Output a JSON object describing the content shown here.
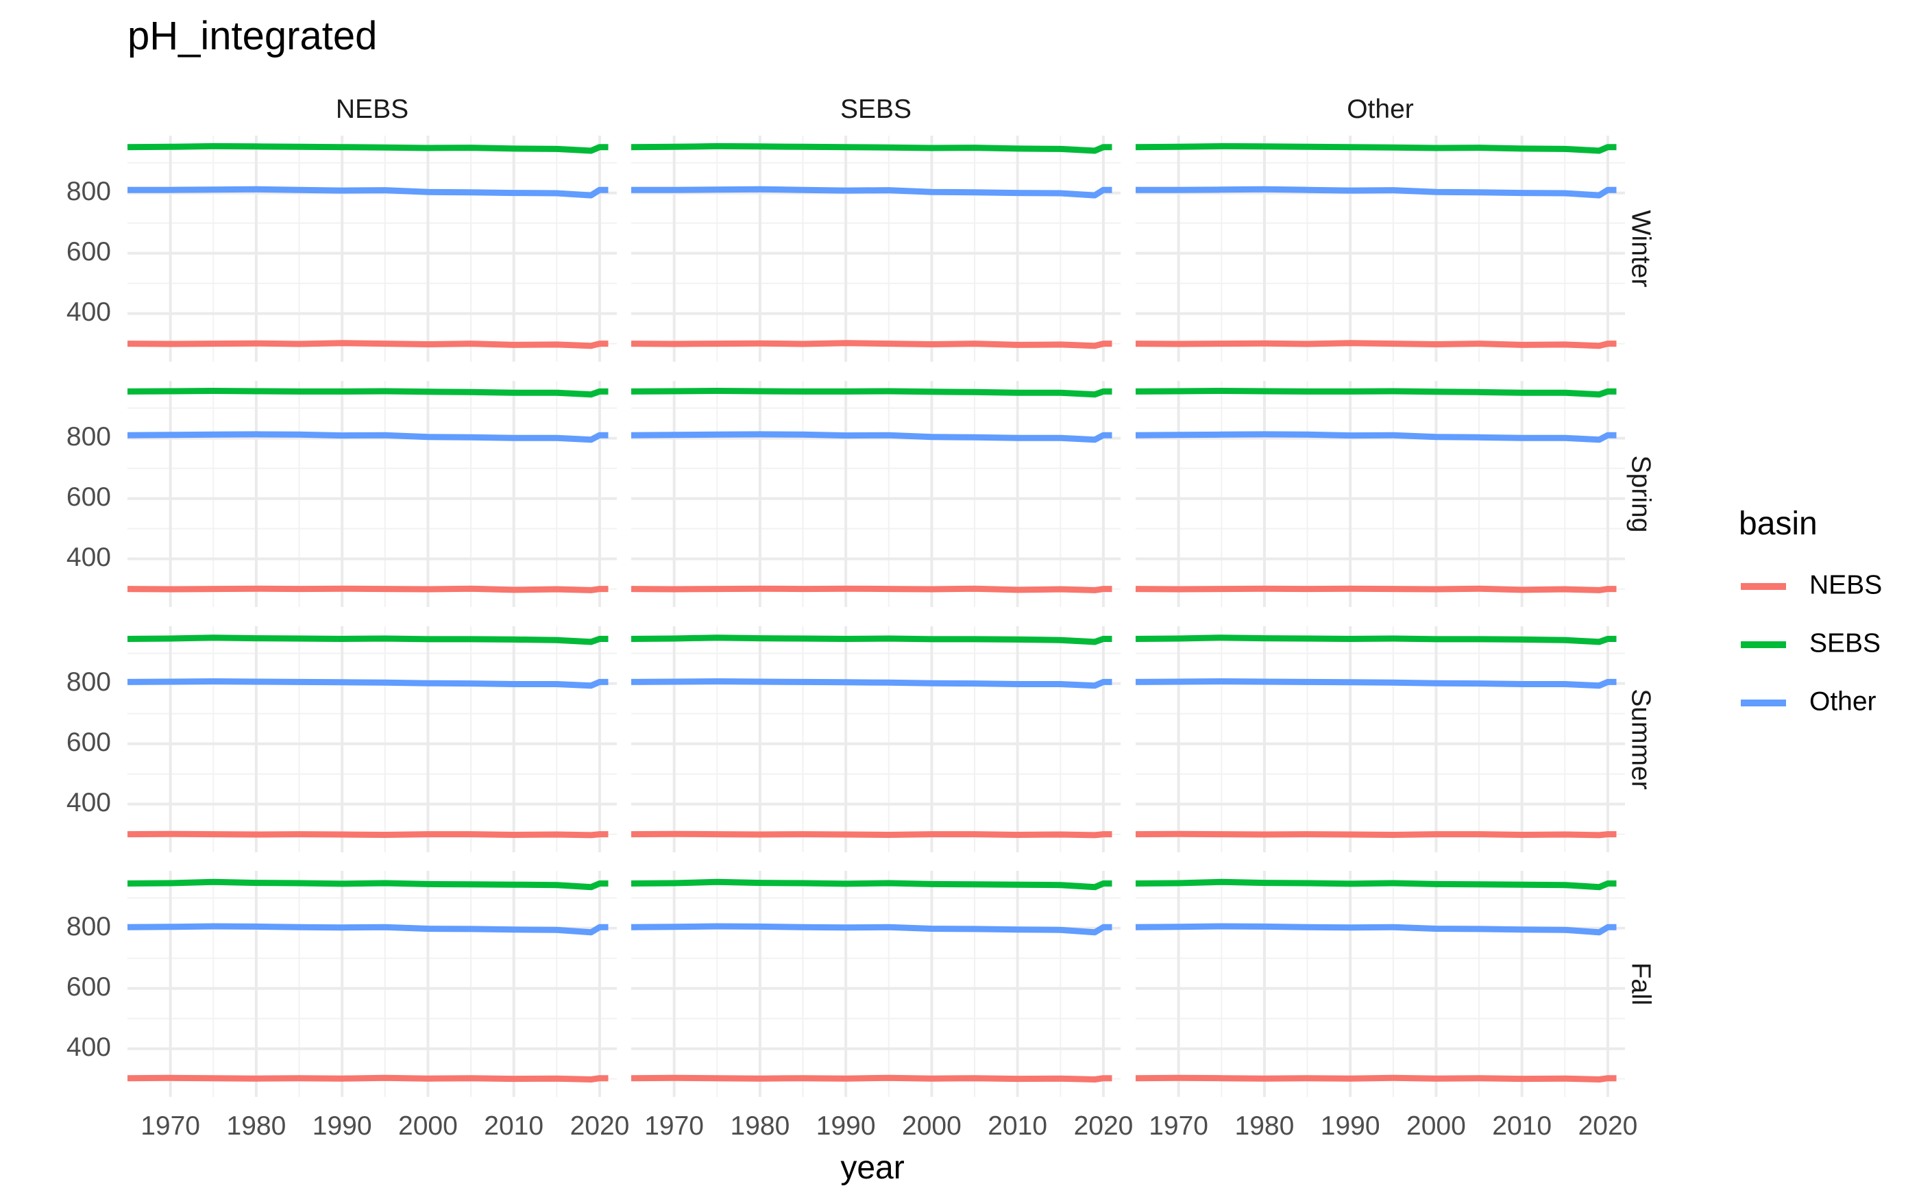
{
  "chart_data": {
    "type": "line",
    "title": "pH_integrated",
    "xlabel": "year",
    "ylabel": "",
    "facet_cols": [
      "NEBS",
      "SEBS",
      "Other"
    ],
    "facet_rows": [
      "Winter",
      "Spring",
      "Summer",
      "Fall"
    ],
    "xlim": [
      1965,
      2022
    ],
    "ylim": [
      240,
      990
    ],
    "x_ticks": [
      1970,
      1980,
      1990,
      2000,
      2010,
      2020
    ],
    "x_tick_labels": [
      "1970",
      "1980",
      "1990",
      "2000",
      "2010",
      "2020"
    ],
    "y_ticks": [
      400,
      600,
      800
    ],
    "y_tick_labels": [
      "400",
      "600",
      "800"
    ],
    "grid": true,
    "x": [
      1965,
      1970,
      1975,
      1980,
      1985,
      1990,
      1995,
      2000,
      2005,
      2010,
      2015,
      2019,
      2020,
      2021
    ],
    "series": [
      {
        "name": "NEBS",
        "color": "#F8766D",
        "panels": {
          "Winter": [
            300,
            299,
            300,
            301,
            299,
            302,
            300,
            298,
            300,
            296,
            297,
            293,
            300,
            300
          ],
          "Spring": [
            300,
            299,
            300,
            301,
            300,
            301,
            300,
            299,
            301,
            297,
            299,
            296,
            300,
            300
          ],
          "Summer": [
            300,
            301,
            300,
            299,
            300,
            299,
            298,
            300,
            300,
            298,
            299,
            297,
            300,
            300
          ],
          "Fall": [
            302,
            303,
            302,
            301,
            302,
            301,
            303,
            301,
            302,
            300,
            301,
            298,
            302,
            302
          ]
        }
      },
      {
        "name": "SEBS",
        "color": "#00BA38",
        "panels": {
          "Winter": [
            952,
            953,
            955,
            954,
            953,
            952,
            951,
            949,
            950,
            947,
            946,
            940,
            952,
            952
          ],
          "Spring": [
            955,
            956,
            957,
            956,
            955,
            955,
            956,
            954,
            953,
            951,
            951,
            945,
            955,
            955
          ],
          "Summer": [
            948,
            949,
            952,
            950,
            949,
            948,
            949,
            947,
            947,
            946,
            944,
            938,
            948,
            948
          ],
          "Fall": [
            948,
            949,
            953,
            950,
            949,
            947,
            949,
            946,
            945,
            944,
            943,
            936,
            948,
            948
          ]
        }
      },
      {
        "name": "Other",
        "color": "#619CFF",
        "panels": {
          "Winter": [
            810,
            810,
            811,
            812,
            810,
            808,
            809,
            803,
            802,
            800,
            799,
            792,
            810,
            810
          ],
          "Spring": [
            810,
            811,
            812,
            813,
            812,
            809,
            810,
            804,
            803,
            801,
            801,
            795,
            810,
            810
          ],
          "Summer": [
            805,
            806,
            807,
            806,
            805,
            804,
            803,
            801,
            800,
            798,
            798,
            793,
            805,
            805
          ],
          "Fall": [
            803,
            804,
            806,
            805,
            803,
            802,
            803,
            798,
            797,
            795,
            794,
            786,
            803,
            803
          ]
        }
      }
    ],
    "legend": {
      "title": "basin",
      "position": "right",
      "entries": [
        "NEBS",
        "SEBS",
        "Other"
      ]
    }
  }
}
